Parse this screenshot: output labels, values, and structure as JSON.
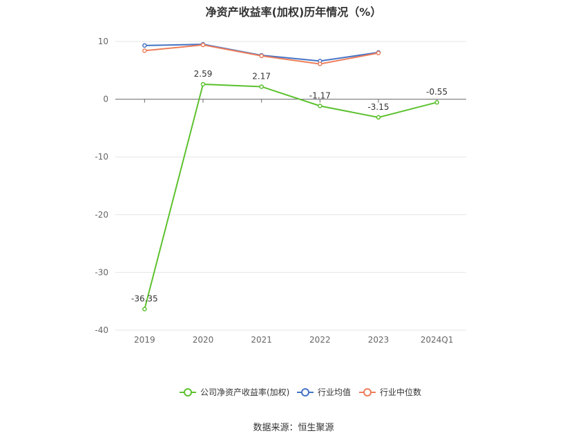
{
  "chart_data": {
    "type": "line",
    "title": "净资产收益率(加权)历年情况（%）",
    "categories": [
      "2019",
      "2020",
      "2021",
      "2022",
      "2023",
      "2024Q1"
    ],
    "ylim": [
      -40,
      10
    ],
    "yticks": [
      10,
      0,
      -10,
      -20,
      -30,
      -40
    ],
    "grid": true,
    "legend_placement": "bottom",
    "series": [
      {
        "name": "公司净资产收益率(加权)",
        "color": "#5cc12e",
        "values": [
          -36.35,
          2.59,
          2.17,
          -1.17,
          -3.15,
          -0.55
        ],
        "labels": [
          "-36.35",
          "2.59",
          "2.17",
          "-1.17",
          "-3.15",
          "-0.55"
        ]
      },
      {
        "name": "行业均值",
        "color": "#4472c4",
        "values": [
          9.3,
          9.5,
          7.6,
          6.6,
          8.1,
          null
        ]
      },
      {
        "name": "行业中位数",
        "color": "#ed7d5a",
        "values": [
          8.4,
          9.4,
          7.5,
          6.1,
          8.0,
          null
        ]
      }
    ]
  },
  "footer": {
    "source": "数据来源：恒生聚源"
  }
}
